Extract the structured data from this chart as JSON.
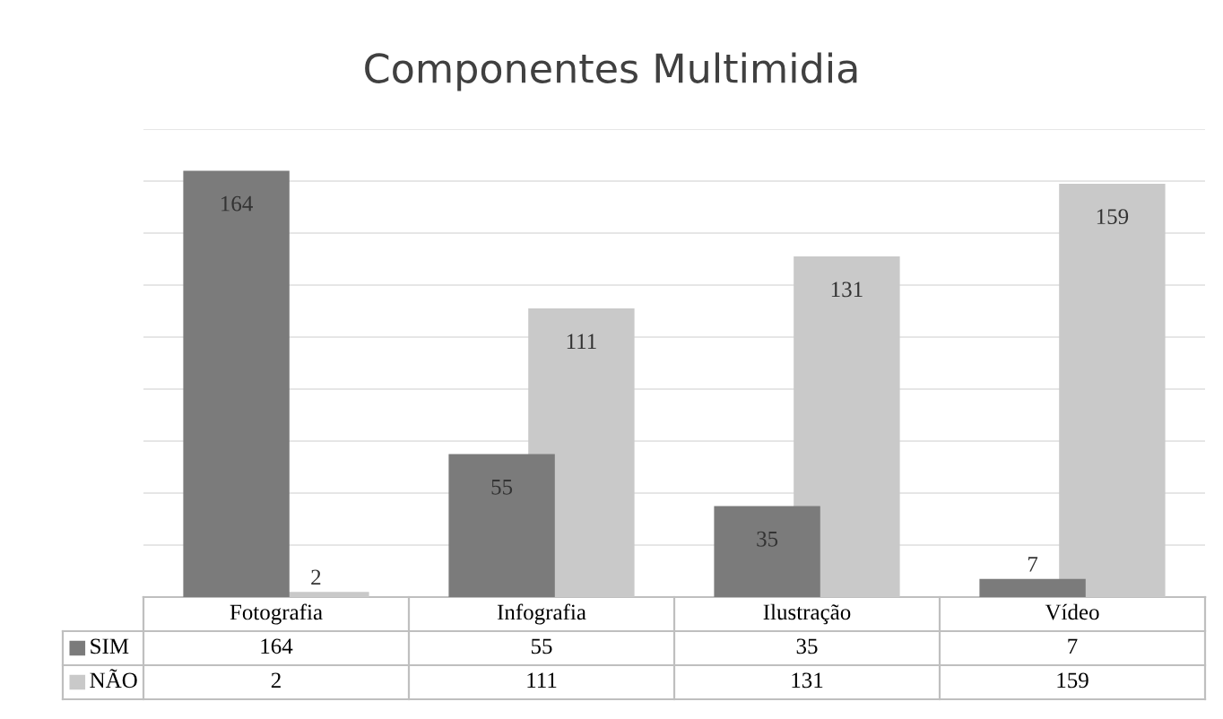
{
  "chart_data": {
    "type": "bar",
    "title": "Componentes Multimidia",
    "categories": [
      "Fotografia",
      "Infografia",
      "Ilustração",
      "Vídeo"
    ],
    "series": [
      {
        "name": "SIM",
        "color": "#7b7b7b",
        "values": [
          164,
          55,
          35,
          7
        ],
        "value_labels": [
          "164",
          "55",
          "35",
          "7"
        ]
      },
      {
        "name": "NÃO",
        "color": "#c9c9c9",
        "values": [
          2,
          111,
          131,
          159
        ],
        "value_labels": [
          "2",
          "111",
          "131",
          "159"
        ]
      }
    ],
    "ylim": [
      0,
      180
    ],
    "yticks": [
      {
        "value": 0,
        "label": null
      },
      {
        "value": 20,
        "label": null
      },
      {
        "value": 40,
        "label": null
      },
      {
        "value": 60,
        "label": null
      },
      {
        "value": 80,
        "label": null
      },
      {
        "value": 100,
        "label": null
      },
      {
        "value": 120,
        "label": null
      },
      {
        "value": 140,
        "label": null
      },
      {
        "value": 160,
        "label": null
      },
      {
        "value": 180,
        "label": null
      }
    ],
    "grid": "y",
    "legend": "bottom",
    "annotations": [
      "164",
      "55",
      "35",
      "7",
      "2",
      "111",
      "131",
      "159"
    ]
  }
}
